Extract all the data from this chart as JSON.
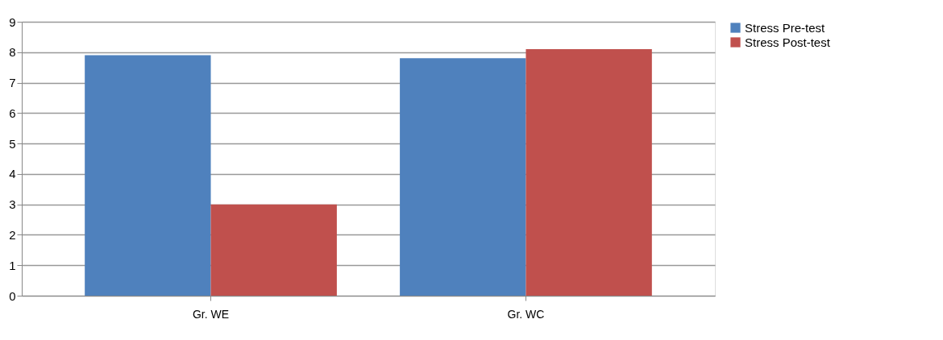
{
  "chart_data": {
    "type": "bar",
    "categories": [
      "Gr. WE",
      "Gr. WC"
    ],
    "series": [
      {
        "name": "Stress Pre-test",
        "color": "#4f81bd",
        "values": [
          7.9,
          7.8
        ]
      },
      {
        "name": "Stress Post-test",
        "color": "#c0504d",
        "values": [
          3.0,
          8.1
        ]
      }
    ],
    "ylim": [
      0,
      9
    ],
    "yticks": [
      0,
      1,
      2,
      3,
      4,
      5,
      6,
      7,
      8,
      9
    ],
    "grid": "y",
    "legend": "right"
  }
}
